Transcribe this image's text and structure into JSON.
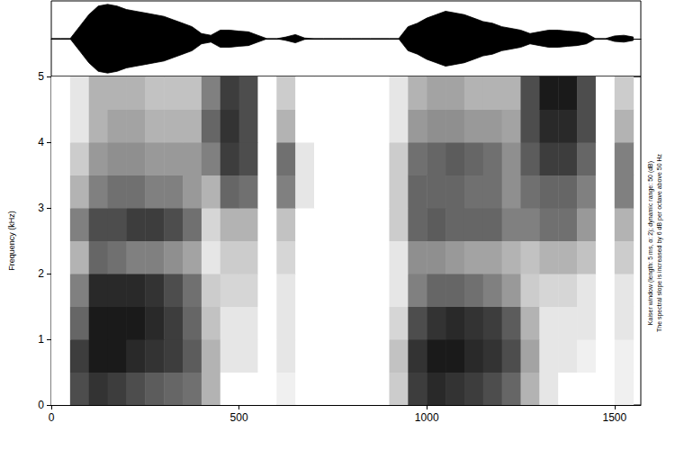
{
  "chart_data": {
    "type": "spectrogram",
    "ylabel": "Frequency (kHz)",
    "xlim": [
      0,
      1570
    ],
    "xticks": [
      0,
      500,
      1000,
      1500
    ],
    "ylim": [
      0,
      5
    ],
    "yticks": [
      0,
      1,
      2,
      3,
      4,
      5
    ],
    "color": "#000000",
    "annotations": [
      "Kaiser window (length: 5 ms, α: 2); dynamic range: 50 (dB)",
      "The spectral slope is increased by 6 dB per octave above 50 Hz"
    ],
    "spectrogram": {
      "time_bins": [
        0,
        50,
        100,
        150,
        200,
        250,
        300,
        350,
        400,
        450,
        500,
        550,
        600,
        650,
        700,
        750,
        800,
        850,
        900,
        950,
        1000,
        1050,
        1100,
        1150,
        1200,
        1250,
        1300,
        1350,
        1400,
        1450,
        1500,
        1550
      ],
      "freq_bins": [
        0,
        0.5,
        1,
        1.5,
        2,
        2.5,
        3,
        3.5,
        4,
        4.5,
        5
      ],
      "zlim": [
        0,
        50
      ],
      "cells": [
        [
          0,
          35,
          40,
          38,
          35,
          32,
          30,
          28,
          15,
          0,
          0,
          0,
          3,
          0,
          0,
          0,
          0,
          0,
          10,
          38,
          42,
          40,
          38,
          35,
          30,
          15,
          5,
          0,
          0,
          0,
          3
        ],
        [
          0,
          38,
          45,
          45,
          42,
          40,
          38,
          32,
          15,
          5,
          5,
          0,
          5,
          0,
          0,
          0,
          0,
          0,
          12,
          40,
          45,
          45,
          42,
          40,
          35,
          18,
          5,
          5,
          3,
          0,
          3
        ],
        [
          0,
          30,
          45,
          45,
          45,
          42,
          38,
          30,
          12,
          5,
          5,
          0,
          5,
          0,
          0,
          0,
          0,
          0,
          8,
          35,
          40,
          42,
          40,
          38,
          32,
          15,
          5,
          5,
          5,
          0,
          5
        ],
        [
          0,
          25,
          42,
          42,
          42,
          40,
          35,
          28,
          10,
          8,
          8,
          0,
          5,
          0,
          0,
          0,
          0,
          0,
          5,
          25,
          30,
          30,
          28,
          25,
          20,
          10,
          8,
          8,
          5,
          0,
          5
        ],
        [
          0,
          15,
          30,
          28,
          25,
          25,
          22,
          18,
          5,
          10,
          10,
          0,
          8,
          0,
          0,
          0,
          0,
          0,
          5,
          22,
          22,
          20,
          18,
          18,
          15,
          12,
          15,
          15,
          12,
          0,
          10
        ],
        [
          0,
          25,
          35,
          35,
          38,
          38,
          35,
          28,
          8,
          15,
          15,
          0,
          12,
          0,
          0,
          0,
          0,
          0,
          10,
          30,
          32,
          30,
          30,
          30,
          25,
          25,
          28,
          28,
          20,
          0,
          15
        ],
        [
          0,
          15,
          25,
          28,
          28,
          25,
          25,
          20,
          15,
          30,
          28,
          0,
          25,
          5,
          0,
          0,
          0,
          0,
          10,
          30,
          30,
          30,
          28,
          28,
          22,
          28,
          30,
          30,
          25,
          0,
          25
        ],
        [
          0,
          10,
          20,
          22,
          22,
          20,
          20,
          20,
          25,
          38,
          35,
          0,
          28,
          5,
          0,
          0,
          0,
          0,
          10,
          28,
          30,
          32,
          30,
          28,
          22,
          32,
          38,
          38,
          30,
          0,
          25
        ],
        [
          0,
          5,
          15,
          18,
          18,
          15,
          15,
          15,
          30,
          40,
          35,
          0,
          15,
          0,
          0,
          0,
          0,
          0,
          5,
          20,
          22,
          22,
          20,
          20,
          18,
          35,
          42,
          42,
          35,
          0,
          15
        ],
        [
          0,
          5,
          15,
          15,
          15,
          12,
          12,
          12,
          25,
          38,
          35,
          0,
          10,
          0,
          0,
          0,
          0,
          0,
          5,
          15,
          18,
          18,
          15,
          15,
          15,
          35,
          45,
          45,
          35,
          0,
          10
        ]
      ]
    },
    "waveform": {
      "ylim": [
        -1.1,
        1.1
      ],
      "x": [
        0,
        25,
        50,
        75,
        100,
        125,
        150,
        175,
        200,
        225,
        250,
        275,
        300,
        325,
        350,
        375,
        400,
        425,
        450,
        475,
        500,
        525,
        550,
        575,
        600,
        625,
        650,
        675,
        700,
        725,
        750,
        775,
        800,
        825,
        850,
        875,
        900,
        925,
        950,
        975,
        1000,
        1025,
        1050,
        1075,
        1100,
        1125,
        1150,
        1175,
        1200,
        1225,
        1250,
        1275,
        1300,
        1325,
        1350,
        1375,
        1400,
        1425,
        1450,
        1475,
        1500,
        1525,
        1550
      ],
      "values": [
        0,
        0,
        0,
        0.35,
        0.7,
        0.95,
        1.0,
        0.95,
        0.85,
        0.8,
        0.75,
        0.7,
        0.65,
        0.55,
        0.45,
        0.35,
        0.15,
        0.1,
        0.25,
        0.25,
        0.22,
        0.2,
        0.1,
        0,
        0,
        0.05,
        0.12,
        0.02,
        0,
        0,
        0,
        0,
        0,
        0,
        0,
        0,
        0,
        0,
        0.35,
        0.45,
        0.6,
        0.7,
        0.8,
        0.75,
        0.7,
        0.6,
        0.5,
        0.45,
        0.35,
        0.3,
        0.25,
        0.15,
        0.2,
        0.25,
        0.25,
        0.22,
        0.2,
        0.15,
        0,
        0,
        0.08,
        0.1,
        0.05
      ]
    }
  }
}
